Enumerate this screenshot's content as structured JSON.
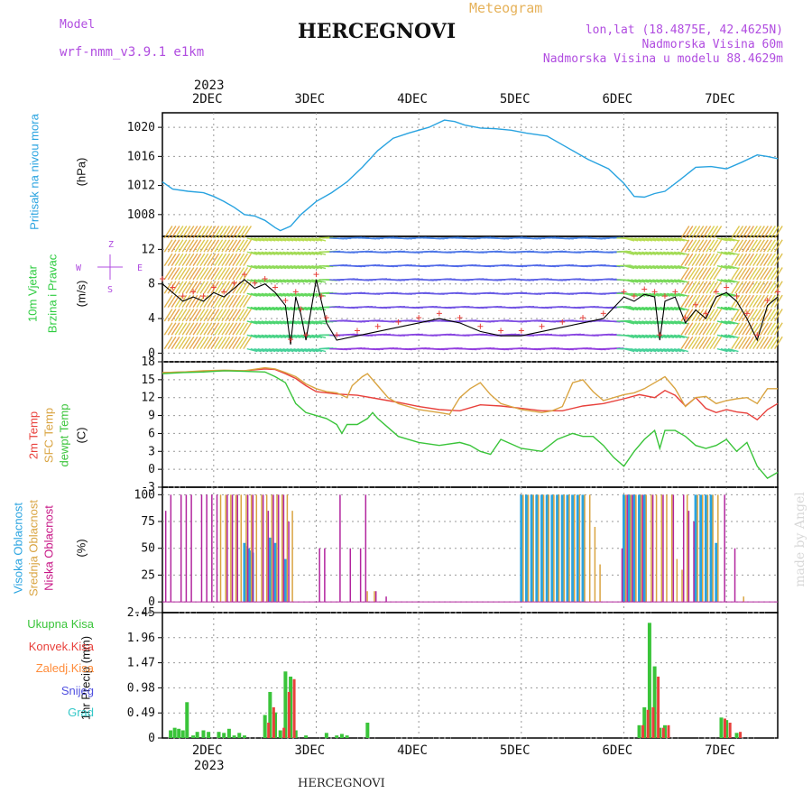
{
  "header": {
    "model_label": "Model",
    "model_name": "wrf-nmm_v3.9.1 e1km",
    "station_title": "HERCEGNOVI",
    "meteogram_label": "Meteogram",
    "coords": "lon,lat (18.4875E, 42.4625N)",
    "elevation": "Nadmorska Visina 60m",
    "model_elevation": "Nadmorska Visina u modelu 88.4629m",
    "footer_title": "HERCEGNOVI",
    "watermark": "made by Angel"
  },
  "time_axis": {
    "year": "2023",
    "ticks": [
      "2DEC",
      "3DEC",
      "4DEC",
      "5DEC",
      "6DEC",
      "7DEC"
    ],
    "day_start": 1.5,
    "day_end": 7.5
  },
  "colors": {
    "pressure": "#29a3e0",
    "temp2m": "#e8413c",
    "sfc_temp": "#d9a441",
    "dewpt": "#3ac43a",
    "cloud_high": "#29a3e0",
    "cloud_mid": "#d9a441",
    "cloud_low": "#b2259e",
    "precip_total": "#3ac43a",
    "precip_conv": "#e8413c",
    "precip_frozen": "#ff8c3a",
    "snow": "#5050e0",
    "graupel": "#35c8c8",
    "wind_label": "#2ecc40",
    "compass": "#b04ce0"
  },
  "panels": {
    "pressure": {
      "title": "Pritisak na nivou mora",
      "unit": "(hPa)",
      "ticks": [
        "1008",
        "1012",
        "1016",
        "1020"
      ]
    },
    "wind": {
      "title_line1": "10m Vjetar",
      "title_line2": "Brzina i Pravac",
      "unit": "(m/s)",
      "ticks": [
        "0",
        "4",
        "8",
        "12"
      ],
      "compass": {
        "n": "Z",
        "w": "W",
        "e": "E",
        "s": "S"
      }
    },
    "temperature": {
      "label_2m": "2m Temp",
      "label_sfc": "SFC Temp",
      "label_dew": "dewpt Temp",
      "unit": "(C)",
      "ticks": [
        "-3",
        "0",
        "3",
        "6",
        "9",
        "12",
        "15",
        "18"
      ]
    },
    "cloud": {
      "label_high": "Visoka Oblacnost",
      "label_mid": "Srednja Oblacnost",
      "label_low": "Niska Oblacnost",
      "unit": "(%)",
      "ticks": [
        "0",
        "25",
        "50",
        "75",
        "100"
      ]
    },
    "precip": {
      "unit": "1hr Precip (mm)",
      "ticks": [
        "0",
        "0.49",
        "0.98",
        "1.47",
        "1.96",
        "2.45"
      ],
      "legend": [
        {
          "label": "Ukupna Kisa",
          "color": "#3ac43a"
        },
        {
          "label": "Konvek.Kisa",
          "color": "#e8413c"
        },
        {
          "label": "Zaledj.Kisa",
          "color": "#ff8c3a"
        },
        {
          "label": "Snijeg",
          "color": "#5050e0"
        },
        {
          "label": "Grad",
          "color": "#35c8c8"
        }
      ]
    }
  },
  "chart_data": [
    {
      "type": "line",
      "title": "",
      "ylabel": "(hPa)",
      "ylim": [
        1005,
        1022
      ],
      "series": [
        {
          "name": "Pritisak na nivou mora",
          "x": [
            1.5,
            1.6,
            1.75,
            1.9,
            2.0,
            2.1,
            2.2,
            2.3,
            2.4,
            2.5,
            2.6,
            2.65,
            2.75,
            2.85,
            3.0,
            3.15,
            3.3,
            3.45,
            3.6,
            3.75,
            3.9,
            4.1,
            4.25,
            4.35,
            4.45,
            4.6,
            4.75,
            4.9,
            5.05,
            5.25,
            5.45,
            5.65,
            5.85,
            6.0,
            6.1,
            6.2,
            6.3,
            6.4,
            6.55,
            6.7,
            6.85,
            7.0,
            7.15,
            7.3,
            7.4,
            7.5
          ],
          "y": [
            1012.5,
            1011.5,
            1011.2,
            1011.0,
            1010.5,
            1009.8,
            1009.0,
            1008.0,
            1007.8,
            1007.2,
            1006.2,
            1005.8,
            1006.4,
            1008.0,
            1009.8,
            1011.0,
            1012.5,
            1014.5,
            1016.8,
            1018.5,
            1019.2,
            1020.0,
            1021.0,
            1020.8,
            1020.3,
            1019.9,
            1019.8,
            1019.6,
            1019.2,
            1018.8,
            1017.2,
            1015.6,
            1014.3,
            1012.3,
            1010.5,
            1010.4,
            1010.9,
            1011.2,
            1012.8,
            1014.5,
            1014.6,
            1014.3,
            1015.2,
            1016.2,
            1016.0,
            1015.7
          ]
        }
      ]
    },
    {
      "type": "line",
      "title": "",
      "ylabel": "(m/s)",
      "ylim": [
        -1,
        13.5
      ],
      "series": [
        {
          "name": "10m Vjetar",
          "x": [
            1.5,
            1.6,
            1.7,
            1.8,
            1.9,
            2.0,
            2.1,
            2.2,
            2.3,
            2.4,
            2.5,
            2.6,
            2.7,
            2.75,
            2.8,
            2.85,
            2.9,
            3.0,
            3.05,
            3.1,
            3.2,
            3.4,
            3.6,
            3.8,
            4.0,
            4.2,
            4.4,
            4.6,
            4.8,
            5.0,
            5.2,
            5.4,
            5.6,
            5.8,
            6.0,
            6.1,
            6.2,
            6.3,
            6.35,
            6.4,
            6.5,
            6.6,
            6.7,
            6.8,
            6.9,
            7.0,
            7.1,
            7.2,
            7.3,
            7.4,
            7.5
          ],
          "y": [
            8.0,
            7.0,
            6.0,
            6.5,
            6.0,
            7.0,
            6.5,
            7.5,
            8.5,
            7.5,
            8.0,
            7.0,
            5.5,
            1.0,
            6.5,
            4.5,
            1.5,
            8.5,
            6.0,
            3.5,
            1.5,
            2.0,
            2.5,
            3.0,
            3.5,
            4.0,
            3.5,
            2.5,
            2.0,
            2.0,
            2.5,
            3.0,
            3.5,
            4.0,
            6.5,
            6.0,
            6.8,
            6.5,
            1.5,
            6.0,
            6.5,
            3.5,
            5.0,
            4.0,
            6.5,
            7.0,
            6.0,
            4.0,
            1.5,
            5.5,
            6.5
          ]
        }
      ]
    },
    {
      "type": "line",
      "title": "",
      "ylabel": "(C)",
      "ylim": [
        -3,
        18
      ],
      "series": [
        {
          "name": "2m Temp",
          "x": [
            1.5,
            1.7,
            1.9,
            2.1,
            2.3,
            2.5,
            2.6,
            2.7,
            2.8,
            2.9,
            3.0,
            3.2,
            3.4,
            3.6,
            3.8,
            4.0,
            4.2,
            4.4,
            4.6,
            4.8,
            5.0,
            5.2,
            5.4,
            5.6,
            5.8,
            6.0,
            6.15,
            6.3,
            6.4,
            6.5,
            6.6,
            6.7,
            6.8,
            6.9,
            7.0,
            7.1,
            7.2,
            7.3,
            7.4,
            7.5
          ],
          "y": [
            16.2,
            16.3,
            16.4,
            16.5,
            16.5,
            16.8,
            16.7,
            16.0,
            15.2,
            14.0,
            13.0,
            12.6,
            12.4,
            11.8,
            11.2,
            10.5,
            10.0,
            9.8,
            10.8,
            10.6,
            10.2,
            9.8,
            9.8,
            10.6,
            11.0,
            11.8,
            12.5,
            12.0,
            13.2,
            12.4,
            10.6,
            12.0,
            10.2,
            9.5,
            10.0,
            9.6,
            9.4,
            8.3,
            10.0,
            11.0
          ]
        },
        {
          "name": "SFC Temp",
          "x": [
            1.5,
            1.7,
            1.9,
            2.1,
            2.3,
            2.5,
            2.6,
            2.7,
            2.8,
            2.9,
            3.0,
            3.1,
            3.2,
            3.3,
            3.35,
            3.45,
            3.5,
            3.6,
            3.7,
            3.8,
            4.0,
            4.2,
            4.3,
            4.4,
            4.5,
            4.6,
            4.7,
            4.8,
            5.0,
            5.2,
            5.3,
            5.4,
            5.5,
            5.6,
            5.7,
            5.8,
            6.0,
            6.1,
            6.2,
            6.3,
            6.4,
            6.5,
            6.6,
            6.7,
            6.8,
            6.9,
            7.0,
            7.1,
            7.2,
            7.3,
            7.4,
            7.5
          ],
          "y": [
            16.2,
            16.3,
            16.5,
            16.6,
            16.5,
            17.0,
            16.8,
            16.2,
            15.5,
            14.3,
            13.5,
            13.0,
            12.8,
            12.0,
            14.0,
            15.5,
            16.0,
            14.0,
            12.0,
            11.0,
            10.0,
            9.5,
            9.2,
            12.0,
            13.5,
            14.5,
            12.5,
            11.0,
            10.0,
            9.5,
            9.8,
            10.5,
            14.5,
            15.0,
            13.0,
            11.5,
            12.5,
            12.8,
            13.5,
            14.5,
            15.5,
            13.5,
            10.5,
            12.0,
            12.2,
            11.0,
            11.5,
            11.8,
            12.0,
            11.0,
            13.5,
            13.5
          ]
        },
        {
          "name": "dewpt Temp",
          "x": [
            1.5,
            1.7,
            1.9,
            2.1,
            2.3,
            2.5,
            2.6,
            2.7,
            2.8,
            2.9,
            3.0,
            3.1,
            3.2,
            3.25,
            3.3,
            3.4,
            3.5,
            3.55,
            3.6,
            3.7,
            3.8,
            4.0,
            4.2,
            4.4,
            4.5,
            4.6,
            4.7,
            4.8,
            5.0,
            5.2,
            5.35,
            5.5,
            5.6,
            5.7,
            5.8,
            5.9,
            6.0,
            6.1,
            6.2,
            6.3,
            6.35,
            6.4,
            6.5,
            6.6,
            6.7,
            6.8,
            6.9,
            7.0,
            7.1,
            7.2,
            7.3,
            7.4,
            7.5
          ],
          "y": [
            16.0,
            16.2,
            16.3,
            16.5,
            16.4,
            16.3,
            15.5,
            14.5,
            11.0,
            9.5,
            9.0,
            8.5,
            7.5,
            6.0,
            7.5,
            7.5,
            8.5,
            9.5,
            8.5,
            7.0,
            5.5,
            4.5,
            4.0,
            4.5,
            4.0,
            3.0,
            2.5,
            5.0,
            3.5,
            3.0,
            5.0,
            6.0,
            5.5,
            5.5,
            4.0,
            2.0,
            0.5,
            3.0,
            5.0,
            6.5,
            3.5,
            6.5,
            6.5,
            5.5,
            4.0,
            3.5,
            4.0,
            5.0,
            3.0,
            4.5,
            0.5,
            -1.5,
            -0.5
          ]
        }
      ]
    },
    {
      "type": "bar",
      "title": "",
      "ylabel": "(%)",
      "ylim": [
        0,
        100
      ],
      "series": [
        {
          "name": "Visoka Oblacnost",
          "x": [
            2.3,
            2.32,
            2.34,
            2.36,
            2.38,
            2.55,
            2.6,
            2.7,
            5.0,
            5.05,
            5.1,
            5.15,
            5.2,
            5.25,
            5.3,
            5.35,
            5.4,
            5.45,
            5.5,
            5.55,
            5.6,
            6.0,
            6.05,
            6.1,
            6.15,
            6.2,
            6.7,
            6.75,
            6.8,
            6.85,
            6.9
          ],
          "y": [
            55,
            52,
            50,
            48,
            46,
            60,
            55,
            40,
            100,
            100,
            100,
            100,
            100,
            100,
            100,
            100,
            100,
            100,
            100,
            100,
            100,
            100,
            100,
            100,
            100,
            100,
            100,
            100,
            100,
            100,
            55
          ]
        },
        {
          "name": "Srednja Oblacnost",
          "x": [
            2.05,
            2.1,
            2.15,
            2.2,
            2.25,
            2.3,
            2.35,
            2.4,
            2.45,
            2.5,
            2.55,
            2.6,
            2.65,
            2.7,
            2.75,
            3.48,
            3.55,
            5.0,
            5.05,
            5.1,
            5.15,
            5.2,
            5.25,
            5.3,
            5.35,
            5.4,
            5.45,
            5.5,
            5.55,
            5.6,
            5.65,
            5.7,
            5.75,
            6.0,
            6.05,
            6.1,
            6.15,
            6.2,
            6.25,
            6.3,
            6.35,
            6.4,
            6.45,
            6.5,
            6.55,
            6.6,
            6.7,
            6.75,
            6.8,
            6.85,
            6.9,
            7.15
          ],
          "y": [
            100,
            100,
            100,
            100,
            100,
            100,
            100,
            100,
            100,
            100,
            100,
            100,
            100,
            100,
            85,
            10,
            10,
            100,
            100,
            100,
            100,
            100,
            100,
            100,
            100,
            100,
            100,
            100,
            100,
            100,
            100,
            70,
            35,
            100,
            100,
            100,
            100,
            100,
            100,
            100,
            100,
            100,
            100,
            40,
            30,
            100,
            100,
            100,
            100,
            100,
            100,
            5
          ]
        },
        {
          "name": "Niska Oblacnost",
          "x": [
            1.55,
            1.6,
            1.7,
            1.75,
            1.8,
            1.9,
            1.95,
            2.0,
            2.05,
            2.15,
            2.2,
            2.25,
            2.35,
            2.4,
            2.5,
            2.55,
            2.6,
            2.65,
            2.7,
            2.75,
            3.05,
            3.1,
            3.25,
            3.35,
            3.45,
            3.5,
            3.6,
            3.7,
            6.0,
            6.05,
            6.1,
            6.2,
            6.3,
            6.4,
            6.5,
            6.6,
            6.65,
            6.7,
            7.0,
            7.1
          ],
          "y": [
            85,
            100,
            100,
            100,
            100,
            100,
            100,
            100,
            100,
            100,
            100,
            100,
            100,
            100,
            100,
            85,
            100,
            100,
            100,
            75,
            50,
            50,
            100,
            50,
            50,
            100,
            10,
            5,
            50,
            100,
            100,
            100,
            100,
            100,
            100,
            100,
            85,
            75,
            100,
            50
          ]
        }
      ]
    },
    {
      "type": "bar",
      "title": "",
      "ylabel": "1hr Precip (mm)",
      "ylim": [
        0,
        2.45
      ],
      "series": [
        {
          "name": "Ukupna Kisa",
          "x": [
            1.58,
            1.62,
            1.66,
            1.7,
            1.74,
            1.8,
            1.84,
            1.9,
            1.95,
            2.05,
            2.1,
            2.15,
            2.2,
            2.25,
            2.3,
            2.5,
            2.55,
            2.6,
            2.65,
            2.7,
            2.75,
            2.8,
            2.9,
            3.1,
            3.2,
            3.25,
            3.3,
            3.5,
            6.15,
            6.2,
            6.25,
            6.3,
            6.35,
            6.4,
            6.95,
            7.0,
            7.1
          ],
          "y": [
            0.15,
            0.2,
            0.18,
            0.15,
            0.7,
            0.05,
            0.12,
            0.15,
            0.12,
            0.12,
            0.1,
            0.18,
            0.05,
            0.1,
            0.05,
            0.45,
            0.9,
            0.5,
            0.15,
            1.3,
            1.2,
            0.15,
            0.05,
            0.1,
            0.05,
            0.08,
            0.05,
            0.3,
            0.25,
            0.6,
            2.25,
            1.4,
            0.2,
            0.25,
            0.4,
            0.35,
            0.1
          ]
        },
        {
          "name": "Konvek.Kisa",
          "x": [
            2.5,
            2.55,
            2.65,
            2.7,
            2.75,
            6.15,
            6.2,
            6.25,
            6.3,
            6.35,
            6.4,
            6.95,
            7.0,
            7.1
          ],
          "y": [
            0.3,
            0.6,
            0.2,
            0.9,
            1.15,
            0.25,
            0.55,
            0.6,
            1.2,
            0.2,
            0.25,
            0.38,
            0.3,
            0.12
          ]
        }
      ]
    }
  ]
}
